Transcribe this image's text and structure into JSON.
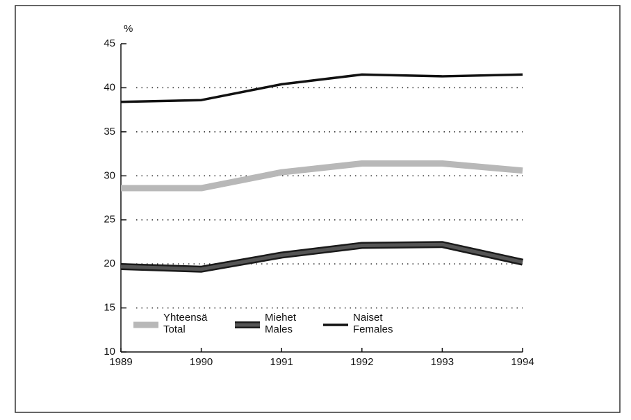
{
  "chart_data": {
    "type": "line",
    "y_label": "%",
    "x": [
      "1989",
      "1990",
      "1991",
      "1992",
      "1993",
      "1994"
    ],
    "series": [
      {
        "name": [
          "Yhteensä",
          "Total"
        ],
        "color": "#b8b8b8",
        "values": [
          28.6,
          28.6,
          30.4,
          31.4,
          31.4,
          30.6
        ]
      },
      {
        "name": [
          "Miehet",
          "Males"
        ],
        "color": "#555555",
        "values": [
          19.7,
          19.4,
          21.0,
          22.1,
          22.2,
          20.2
        ]
      },
      {
        "name": [
          "Naiset",
          "Females"
        ],
        "color": "#111111",
        "values": [
          38.4,
          38.6,
          40.4,
          41.5,
          41.3,
          41.5
        ]
      }
    ],
    "ylim": [
      10,
      45
    ],
    "yticks": [
      10,
      15,
      20,
      25,
      30,
      35,
      40,
      45
    ],
    "grid": true
  }
}
